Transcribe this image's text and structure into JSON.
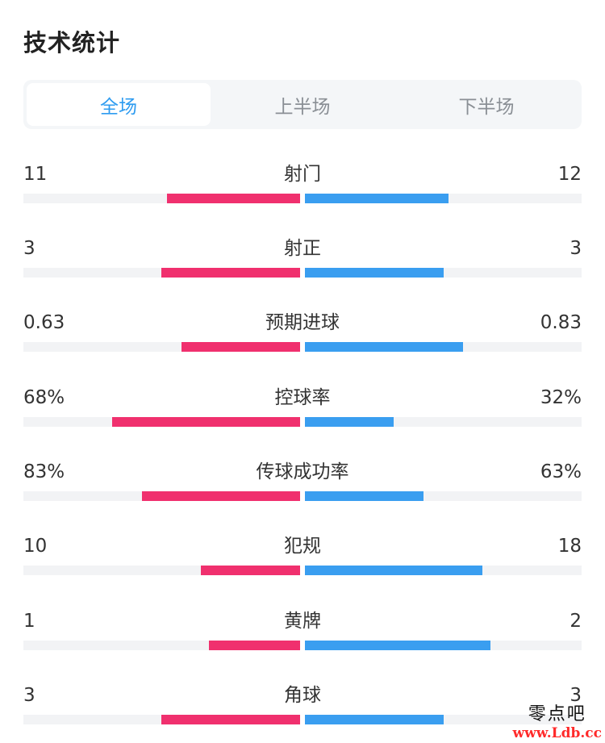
{
  "title": "技术统计",
  "tabs": [
    {
      "label": "全场",
      "active": true
    },
    {
      "label": "上半场",
      "active": false
    },
    {
      "label": "下半场",
      "active": false
    }
  ],
  "colors": {
    "home": "#f0306e",
    "away": "#3a9ef0",
    "accent": "#2f9cf0"
  },
  "stats": [
    {
      "label": "射门",
      "home": "11",
      "away": "12",
      "home_fill": 0.48,
      "away_fill": 0.52
    },
    {
      "label": "射正",
      "home": "3",
      "away": "3",
      "home_fill": 0.5,
      "away_fill": 0.5
    },
    {
      "label": "预期进球",
      "home": "0.63",
      "away": "0.83",
      "home_fill": 0.43,
      "away_fill": 0.57
    },
    {
      "label": "控球率",
      "home": "68%",
      "away": "32%",
      "home_fill": 0.68,
      "away_fill": 0.32
    },
    {
      "label": "传球成功率",
      "home": "83%",
      "away": "63%",
      "home_fill": 0.57,
      "away_fill": 0.43
    },
    {
      "label": "犯规",
      "home": "10",
      "away": "18",
      "home_fill": 0.36,
      "away_fill": 0.64
    },
    {
      "label": "黄牌",
      "home": "1",
      "away": "2",
      "home_fill": 0.33,
      "away_fill": 0.67
    },
    {
      "label": "角球",
      "home": "3",
      "away": "3",
      "home_fill": 0.5,
      "away_fill": 0.5
    }
  ],
  "watermark": {
    "name": "零点吧",
    "url": "www.Ldb.cc"
  }
}
